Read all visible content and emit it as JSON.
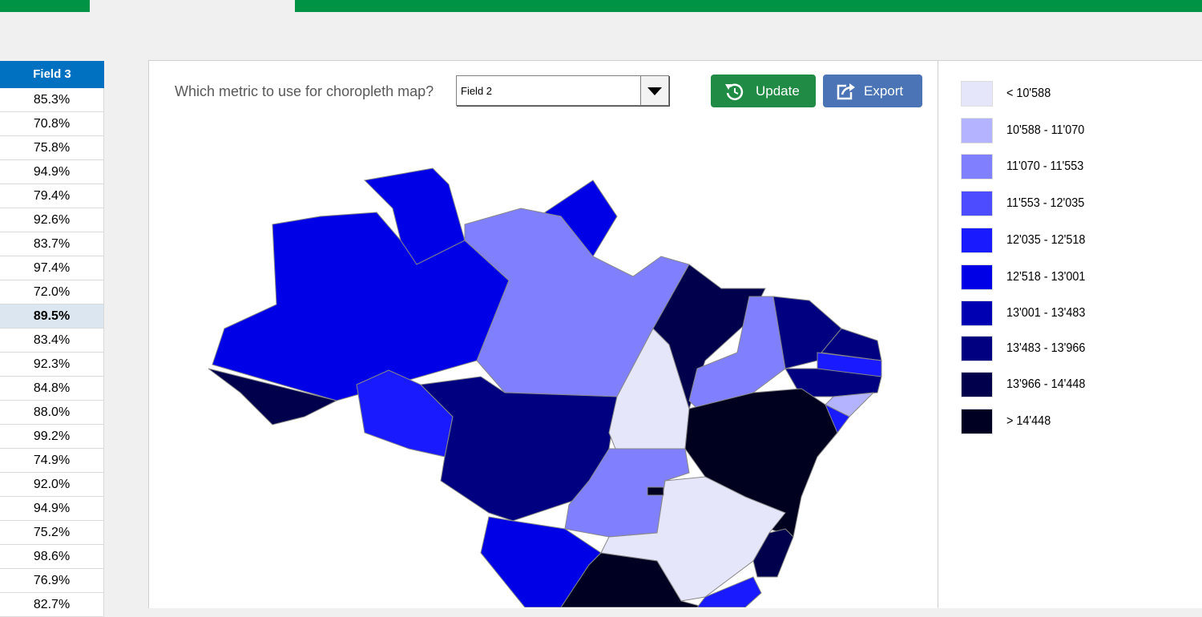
{
  "question": "Which metric to use for choropleth map?",
  "dropdown": {
    "selected": "Field 2"
  },
  "buttons": {
    "update": "Update",
    "export": "Export"
  },
  "table": {
    "header": "Field 3",
    "rows": [
      "85.3%",
      "70.8%",
      "75.8%",
      "94.9%",
      "79.4%",
      "92.6%",
      "83.7%",
      "97.4%",
      "72.0%",
      "89.5%",
      "83.4%",
      "92.3%",
      "84.8%",
      "88.0%",
      "99.2%",
      "74.9%",
      "92.0%",
      "94.9%",
      "75.2%",
      "98.6%",
      "76.9%",
      "82.7%"
    ]
  },
  "legend": {
    "items": [
      {
        "label": "< 10'588",
        "color": "#e6e6fa"
      },
      {
        "label": "10'588 - 11'070",
        "color": "#b3b3ff"
      },
      {
        "label": "11'070 - 11'553",
        "color": "#8080ff"
      },
      {
        "label": "11'553 - 12'035",
        "color": "#4d4dff"
      },
      {
        "label": "12'035 - 12'518",
        "color": "#1a1aff"
      },
      {
        "label": "12'518 - 13'001",
        "color": "#0000e6"
      },
      {
        "label": "13'001 - 13'483",
        "color": "#0000b3"
      },
      {
        "label": "13'483 - 13'966",
        "color": "#000080"
      },
      {
        "label": "13'966 - 14'448",
        "color": "#00004d"
      },
      {
        "label": "> 14'448",
        "color": "#000022"
      }
    ]
  }
}
